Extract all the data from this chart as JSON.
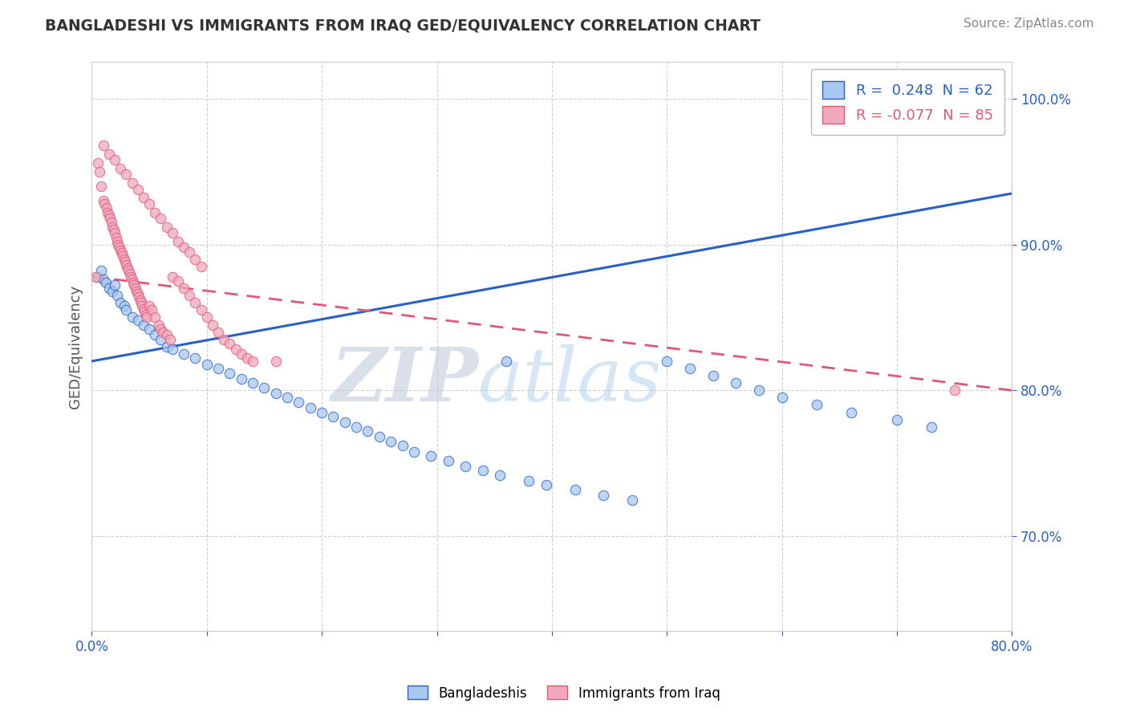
{
  "title": "BANGLADESHI VS IMMIGRANTS FROM IRAQ GED/EQUIVALENCY CORRELATION CHART",
  "source": "Source: ZipAtlas.com",
  "ylabel": "GED/Equivalency",
  "xmin": 0.0,
  "xmax": 0.8,
  "ymin": 0.635,
  "ymax": 1.025,
  "x_ticks": [
    0.0,
    0.1,
    0.2,
    0.3,
    0.4,
    0.5,
    0.6,
    0.7,
    0.8
  ],
  "y_ticks": [
    0.7,
    0.8,
    0.9,
    1.0
  ],
  "y_tick_labels": [
    "70.0%",
    "80.0%",
    "90.0%",
    "100.0%"
  ],
  "blue_color": "#A8C8F0",
  "pink_color": "#F0A8BC",
  "blue_line_color": "#2860C8",
  "pink_line_color": "#E05878",
  "R_blue": 0.248,
  "N_blue": 62,
  "R_pink": -0.077,
  "N_pink": 85,
  "legend_label_blue": "Bangladeshis",
  "legend_label_pink": "Immigrants from Iraq",
  "watermark_zip": "ZIP",
  "watermark_atlas": "atlas",
  "blue_trend_y0": 0.82,
  "blue_trend_y1": 0.935,
  "pink_trend_y0": 0.878,
  "pink_trend_y1": 0.8,
  "blue_scatter_x": [
    0.005,
    0.008,
    0.01,
    0.012,
    0.015,
    0.018,
    0.02,
    0.022,
    0.025,
    0.028,
    0.03,
    0.035,
    0.04,
    0.045,
    0.05,
    0.055,
    0.06,
    0.065,
    0.07,
    0.08,
    0.09,
    0.1,
    0.11,
    0.12,
    0.13,
    0.14,
    0.15,
    0.16,
    0.17,
    0.18,
    0.19,
    0.2,
    0.21,
    0.22,
    0.23,
    0.24,
    0.25,
    0.26,
    0.27,
    0.28,
    0.295,
    0.31,
    0.325,
    0.34,
    0.355,
    0.38,
    0.395,
    0.42,
    0.445,
    0.47,
    0.5,
    0.52,
    0.54,
    0.56,
    0.58,
    0.6,
    0.63,
    0.66,
    0.7,
    0.73,
    0.36,
    0.76
  ],
  "blue_scatter_y": [
    0.878,
    0.882,
    0.876,
    0.874,
    0.87,
    0.868,
    0.872,
    0.865,
    0.86,
    0.858,
    0.855,
    0.85,
    0.848,
    0.845,
    0.842,
    0.838,
    0.835,
    0.83,
    0.828,
    0.825,
    0.822,
    0.818,
    0.815,
    0.812,
    0.808,
    0.805,
    0.802,
    0.798,
    0.795,
    0.792,
    0.788,
    0.785,
    0.782,
    0.778,
    0.775,
    0.772,
    0.768,
    0.765,
    0.762,
    0.758,
    0.755,
    0.752,
    0.748,
    0.745,
    0.742,
    0.738,
    0.735,
    0.732,
    0.728,
    0.725,
    0.82,
    0.815,
    0.81,
    0.805,
    0.8,
    0.795,
    0.79,
    0.785,
    0.78,
    0.775,
    0.82,
    1.0
  ],
  "pink_scatter_x": [
    0.003,
    0.005,
    0.007,
    0.008,
    0.01,
    0.011,
    0.013,
    0.014,
    0.015,
    0.016,
    0.017,
    0.018,
    0.019,
    0.02,
    0.021,
    0.022,
    0.023,
    0.024,
    0.025,
    0.026,
    0.027,
    0.028,
    0.029,
    0.03,
    0.031,
    0.032,
    0.033,
    0.034,
    0.035,
    0.036,
    0.037,
    0.038,
    0.039,
    0.04,
    0.041,
    0.042,
    0.043,
    0.044,
    0.045,
    0.046,
    0.047,
    0.048,
    0.05,
    0.052,
    0.055,
    0.058,
    0.06,
    0.062,
    0.065,
    0.068,
    0.07,
    0.075,
    0.08,
    0.085,
    0.09,
    0.095,
    0.1,
    0.105,
    0.11,
    0.115,
    0.12,
    0.125,
    0.13,
    0.135,
    0.14,
    0.01,
    0.015,
    0.02,
    0.025,
    0.03,
    0.035,
    0.04,
    0.045,
    0.05,
    0.055,
    0.06,
    0.065,
    0.07,
    0.075,
    0.08,
    0.085,
    0.09,
    0.095,
    0.75,
    0.16
  ],
  "pink_scatter_y": [
    0.878,
    0.956,
    0.95,
    0.94,
    0.93,
    0.928,
    0.925,
    0.922,
    0.92,
    0.918,
    0.915,
    0.912,
    0.91,
    0.908,
    0.905,
    0.902,
    0.9,
    0.898,
    0.896,
    0.894,
    0.892,
    0.89,
    0.888,
    0.886,
    0.884,
    0.882,
    0.88,
    0.878,
    0.876,
    0.874,
    0.872,
    0.87,
    0.868,
    0.866,
    0.864,
    0.862,
    0.86,
    0.858,
    0.856,
    0.854,
    0.852,
    0.85,
    0.858,
    0.855,
    0.85,
    0.845,
    0.842,
    0.84,
    0.838,
    0.835,
    0.878,
    0.875,
    0.87,
    0.865,
    0.86,
    0.855,
    0.85,
    0.845,
    0.84,
    0.835,
    0.832,
    0.828,
    0.825,
    0.822,
    0.82,
    0.968,
    0.962,
    0.958,
    0.952,
    0.948,
    0.942,
    0.938,
    0.932,
    0.928,
    0.922,
    0.918,
    0.912,
    0.908,
    0.902,
    0.898,
    0.895,
    0.89,
    0.885,
    0.8,
    0.82
  ]
}
